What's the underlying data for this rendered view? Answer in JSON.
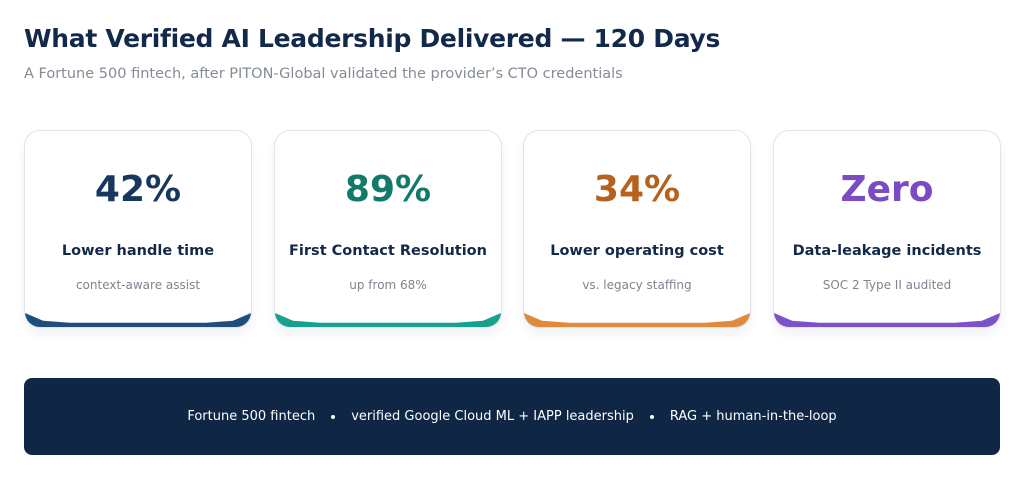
{
  "header": {
    "title": "What Verified AI Leadership Delivered — 120 Days",
    "subtitle": "A Fortune 500 fintech, after PITON-Global validated the provider’s CTO credentials"
  },
  "cards": [
    {
      "value": "42%",
      "label": "Lower handle time",
      "note": "context-aware assist",
      "color": "#17375e",
      "accent": "#1f4e7a"
    },
    {
      "value": "89%",
      "label": "First Contact Resolution",
      "note": "up from 68%",
      "color": "#137a6a",
      "accent": "#18a08e"
    },
    {
      "value": "34%",
      "label": "Lower operating cost",
      "note": "vs. legacy staffing",
      "color": "#b5621f",
      "accent": "#e08a3d"
    },
    {
      "value": "Zero",
      "label": "Data-leakage incidents",
      "note": "SOC 2 Type II audited",
      "color": "#7a4bc2",
      "accent": "#7b52c9"
    }
  ],
  "footer": {
    "items": [
      "Fortune 500 fintech",
      "verified Google Cloud ML + IAPP leadership",
      "RAG + human-in-the-loop"
    ]
  }
}
